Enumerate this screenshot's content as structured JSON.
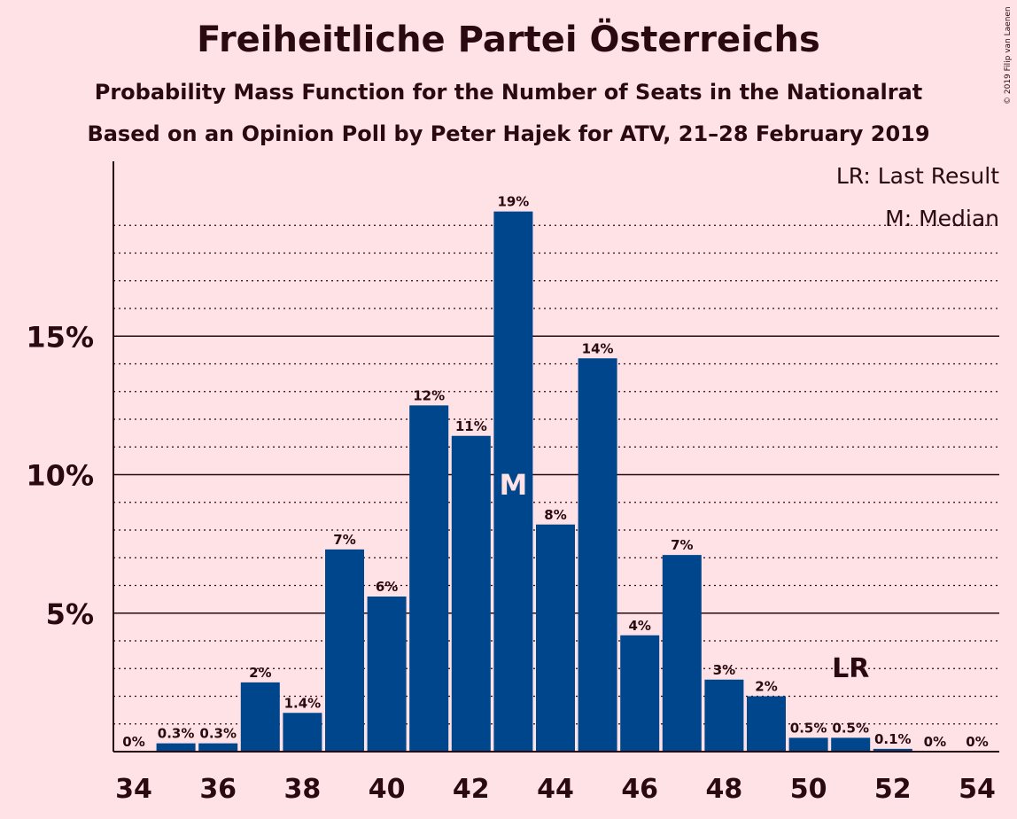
{
  "title": "Freiheitliche Partei Österreichs",
  "subtitle1": "Probability Mass Function for the Number of Seats in the Nationalrat",
  "subtitle2": "Based on an Opinion Poll by Peter Hajek for ATV, 21–28 February 2019",
  "copyright": "© 2019 Filip van Laenen",
  "legend": {
    "last_result": "LR: Last Result",
    "median": "M: Median"
  },
  "colors": {
    "bar": "#00468C",
    "background": "#FFE2E5",
    "text": "#2a0a10"
  },
  "chart_data": {
    "type": "bar",
    "title": "Freiheitliche Partei Österreichs",
    "categories": [
      34,
      35,
      36,
      37,
      38,
      39,
      40,
      41,
      42,
      43,
      44,
      45,
      46,
      47,
      48,
      49,
      50,
      51,
      52,
      53,
      54
    ],
    "values": [
      0,
      0.3,
      0.3,
      2.5,
      1.4,
      7.3,
      5.6,
      12.5,
      11.4,
      19.5,
      8.2,
      14.2,
      4.2,
      7.1,
      2.6,
      2.0,
      0.5,
      0.5,
      0.1,
      0,
      0
    ],
    "data_labels": [
      "0%",
      "0.3%",
      "0.3%",
      "2%",
      "1.4%",
      "7%",
      "6%",
      "12%",
      "11%",
      "19%",
      "8%",
      "14%",
      "4%",
      "7%",
      "3%",
      "2%",
      "0.5%",
      "0.5%",
      "0.1%",
      "0%",
      "0%"
    ],
    "x_tick_labels": [
      "34",
      "36",
      "38",
      "40",
      "42",
      "44",
      "46",
      "48",
      "50",
      "52",
      "54"
    ],
    "y_tick_labels": [
      "5%",
      "10%",
      "15%"
    ],
    "y_ticks": [
      5,
      10,
      15
    ],
    "ylim": [
      0,
      21.2
    ],
    "median_seat": 43,
    "median_marker": "M",
    "last_result_seat": 51,
    "last_result_marker": "LR",
    "grid": true,
    "legend_position": "top-right"
  }
}
